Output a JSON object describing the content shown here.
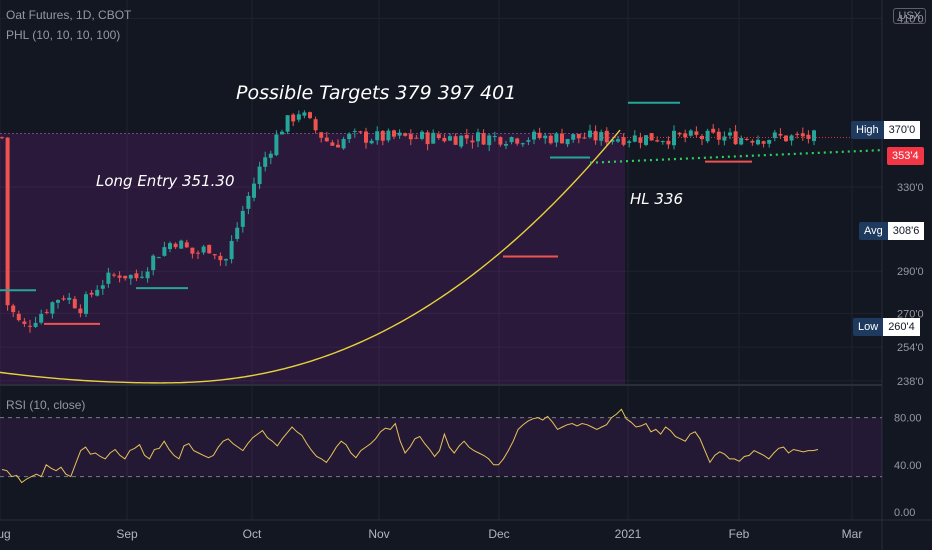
{
  "header": {
    "title": "Oat Futures, 1D, CBOT",
    "indicator": "PHL (10, 10, 10, 100)",
    "currency": "USX"
  },
  "annotations": {
    "targets": "Possible Targets  379  397  401",
    "entry": "Long Entry  351.30",
    "hl": "HL  336"
  },
  "price_tags": {
    "high_label": "High",
    "high_value": "370'0",
    "last_value": "353'4",
    "avg_label": "Avg",
    "avg_value": "308'6",
    "low_label": "Low",
    "low_value": "260'4"
  },
  "rsi": {
    "label": "RSI (10, close)"
  },
  "colors": {
    "up": "#26a69a",
    "down": "#ef5350",
    "curve": "#e6d23c",
    "dotted": "#2fd05a",
    "rsi": "#e8c15a",
    "shade": "#9c27b0",
    "background": "#131722"
  },
  "chart_data": [
    {
      "type": "candlestick",
      "title": "Oat Futures, 1D, CBOT",
      "x_tick_labels": [
        "Aug",
        "Sep",
        "Oct",
        "Nov",
        "Dec",
        "2021",
        "Feb",
        "Mar"
      ],
      "y_tick_labels": [
        "410'0",
        "330'0",
        "290'0",
        "270'0",
        "254'0",
        "238'0"
      ],
      "ylim": [
        236,
        414
      ],
      "approx_close_path": [
        [
          "2020-08-01",
          278
        ],
        [
          "2020-08-12",
          263
        ],
        [
          "2020-08-25",
          272
        ],
        [
          "2020-09-03",
          279
        ],
        [
          "2020-09-14",
          273
        ],
        [
          "2020-09-24",
          284
        ],
        [
          "2020-10-05",
          289
        ],
        [
          "2020-10-15",
          287
        ],
        [
          "2020-10-26",
          298
        ],
        [
          "2020-11-05",
          305
        ],
        [
          "2020-11-16",
          298
        ],
        [
          "2020-11-26",
          302
        ],
        [
          "2020-12-03",
          293
        ],
        [
          "2020-12-14",
          320
        ],
        [
          "2020-12-24",
          341
        ],
        [
          "2021-01-04",
          358
        ],
        [
          "2021-01-14",
          366
        ],
        [
          "2021-01-22",
          358
        ],
        [
          "2021-02-01",
          350
        ],
        [
          "2021-02-12",
          354
        ],
        [
          "2021-02-22",
          353.5
        ]
      ],
      "reference_levels": {
        "high": 370,
        "last": 353.5,
        "average": 308.75,
        "low": 260.5,
        "long_entry": 351.3,
        "higher_low": 336
      },
      "targets": [
        379,
        397,
        401
      ]
    },
    {
      "type": "line",
      "title": "RSI (10, close)",
      "y_tick_labels": [
        "80.00",
        "40.00",
        "0.00"
      ],
      "ylim": [
        0,
        100
      ],
      "bands": [
        80,
        30
      ],
      "series": [
        {
          "values": [
            36,
            35,
            30,
            31,
            25,
            28,
            30,
            32,
            30,
            40,
            37,
            35,
            38,
            32,
            30,
            41,
            52,
            55,
            49,
            50,
            47,
            45,
            50,
            53,
            48,
            45,
            52,
            54,
            57,
            48,
            45,
            53,
            54,
            60,
            53,
            48,
            45,
            56,
            58,
            52,
            50,
            48,
            46,
            48,
            55,
            60,
            62,
            58,
            55,
            52,
            58,
            63,
            66,
            69,
            63,
            60,
            56,
            62,
            67,
            72,
            68,
            65,
            58,
            52,
            47,
            45,
            42,
            48,
            55,
            60,
            57,
            50,
            46,
            52,
            55,
            58,
            62,
            68,
            71,
            70,
            75,
            60,
            50,
            55,
            62,
            64,
            58,
            53,
            47,
            52,
            66,
            55,
            50,
            56,
            60,
            55,
            52,
            50,
            48,
            45,
            40,
            40,
            45,
            52,
            60,
            70,
            74,
            77,
            79,
            80,
            78,
            81,
            76,
            70,
            72,
            74,
            75,
            73,
            75,
            74,
            72,
            70,
            72,
            74,
            80,
            83,
            87,
            79,
            76,
            72,
            73,
            75,
            68,
            70,
            66,
            72,
            69,
            64,
            62,
            60,
            66,
            68,
            62,
            52,
            42,
            48,
            51,
            49,
            45,
            45,
            43,
            47,
            48,
            52,
            50,
            48,
            45,
            50,
            54,
            55,
            50,
            53,
            52,
            51,
            52,
            52,
            53
          ]
        }
      ]
    }
  ]
}
